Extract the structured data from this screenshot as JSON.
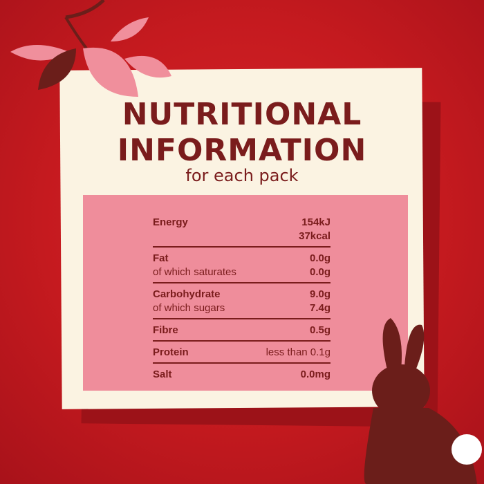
{
  "heading": {
    "line1": "NUTRITIONAL",
    "line2": "INFORMATION",
    "line3": "for each pack"
  },
  "rows": [
    {
      "label": "Energy",
      "value": "154kJ",
      "sub_value": "37kcal"
    },
    {
      "label": "Fat",
      "value": "0.0g",
      "sub_label": "of which saturates",
      "sub_value": "0.0g"
    },
    {
      "label": "Carbohydrate",
      "value": "9.0g",
      "sub_label": "of which sugars",
      "sub_value": "7.4g"
    },
    {
      "label": "Fibre",
      "value": "0.5g"
    },
    {
      "label": "Protein",
      "value": "less than 0.1g"
    },
    {
      "label": "Salt",
      "value": "0.0mg"
    }
  ],
  "colors": {
    "background": "#c51a1f",
    "card": "#fbf3e2",
    "panel": "#ef8d9b",
    "text": "#7a1c1c",
    "bunny": "#6b1e1a"
  },
  "icons": [
    "leaves-decoration",
    "bunny-silhouette"
  ]
}
